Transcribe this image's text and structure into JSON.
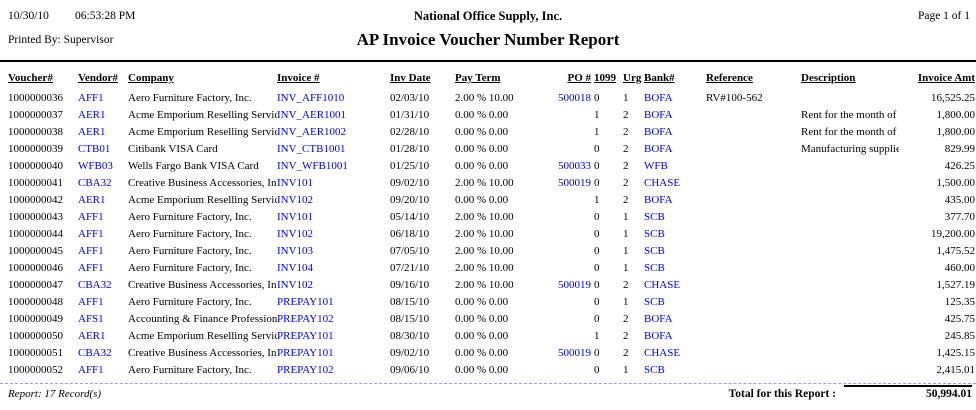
{
  "page_header": {
    "date": "10/30/10",
    "time": "06:53:28 PM",
    "company_name": "National Office Supply, Inc.",
    "page_indicator": "Page 1 of 1",
    "printed_by": "Printed By: Supervisor",
    "report_title": "AP Invoice Voucher Number Report"
  },
  "colors": {
    "link_blue": "#0000dd",
    "text_black": "#000000",
    "header_rule": "#000000",
    "footer_separator": "#9999ee"
  },
  "table": {
    "columns": [
      {
        "key": "voucher",
        "label": "Voucher#",
        "link": false
      },
      {
        "key": "vendor",
        "label": "Vendor#",
        "link": true
      },
      {
        "key": "company",
        "label": "Company",
        "link": false
      },
      {
        "key": "invoice",
        "label": "Invoice #",
        "link": true
      },
      {
        "key": "inv_date",
        "label": "Inv Date",
        "link": false
      },
      {
        "key": "pay_term",
        "label": "Pay Term",
        "link": false
      },
      {
        "key": "po",
        "label": "PO #",
        "link": true
      },
      {
        "key": "c1099",
        "label": "1099",
        "link": false
      },
      {
        "key": "urg",
        "label": "Urg",
        "link": false
      },
      {
        "key": "bank",
        "label": "Bank#",
        "link": true
      },
      {
        "key": "reference",
        "label": "Reference",
        "link": false
      },
      {
        "key": "description",
        "label": "Description",
        "link": false
      },
      {
        "key": "amount",
        "label": "Invoice Amt",
        "link": false
      }
    ],
    "rows": [
      {
        "voucher": "1000000036",
        "vendor": "AFF1",
        "company": "Aero Furniture Factory, Inc.",
        "invoice": "INV_AFF1010",
        "inv_date": "02/03/10",
        "pay_term": "2.00 % 10.00",
        "po": "500018",
        "c1099": "0",
        "urg": "1",
        "bank": "BOFA",
        "reference": "RV#100-562",
        "description": "",
        "amount": "16,525.25"
      },
      {
        "voucher": "1000000037",
        "vendor": "AER1",
        "company": "Acme Emporium Reselling Servic",
        "invoice": "INV_AER1001",
        "inv_date": "01/31/10",
        "pay_term": "0.00 % 0.00",
        "po": "",
        "c1099": "1",
        "urg": "2",
        "bank": "BOFA",
        "reference": "",
        "description": "Rent for the month of Ja",
        "amount": "1,800.00"
      },
      {
        "voucher": "1000000038",
        "vendor": "AER1",
        "company": "Acme Emporium Reselling Servic",
        "invoice": "INV_AER1002",
        "inv_date": "02/28/10",
        "pay_term": "0.00 % 0.00",
        "po": "",
        "c1099": "1",
        "urg": "2",
        "bank": "BOFA",
        "reference": "",
        "description": "Rent for the month of F",
        "amount": "1,800.00"
      },
      {
        "voucher": "1000000039",
        "vendor": "CTB01",
        "company": "Citibank VISA Card",
        "invoice": "INV_CTB1001",
        "inv_date": "01/28/10",
        "pay_term": "0.00 % 0.00",
        "po": "",
        "c1099": "0",
        "urg": "2",
        "bank": "BOFA",
        "reference": "",
        "description": "Manufacturing supplies",
        "amount": "829.99"
      },
      {
        "voucher": "1000000040",
        "vendor": "WFB03",
        "company": "Wells Fargo Bank VISA Card",
        "invoice": "INV_WFB1001",
        "inv_date": "01/25/10",
        "pay_term": "0.00 % 0.00",
        "po": "500033",
        "c1099": "0",
        "urg": "2",
        "bank": "WFB",
        "reference": "",
        "description": "",
        "amount": "426.25"
      },
      {
        "voucher": "1000000041",
        "vendor": "CBA32",
        "company": "Creative Business Accessories, In",
        "invoice": "INV101",
        "inv_date": "09/02/10",
        "pay_term": "2.00 % 10.00",
        "po": "500019",
        "c1099": "0",
        "urg": "2",
        "bank": "CHASE",
        "reference": "",
        "description": "",
        "amount": "1,500.00"
      },
      {
        "voucher": "1000000042",
        "vendor": "AER1",
        "company": "Acme Emporium Reselling Servic",
        "invoice": "INV102",
        "inv_date": "09/20/10",
        "pay_term": "0.00 % 0.00",
        "po": "",
        "c1099": "1",
        "urg": "2",
        "bank": "BOFA",
        "reference": "",
        "description": "",
        "amount": "435.00"
      },
      {
        "voucher": "1000000043",
        "vendor": "AFF1",
        "company": "Aero Furniture Factory, Inc.",
        "invoice": "INV101",
        "inv_date": "05/14/10",
        "pay_term": "2.00 % 10.00",
        "po": "",
        "c1099": "0",
        "urg": "1",
        "bank": "SCB",
        "reference": "",
        "description": "",
        "amount": "377.70"
      },
      {
        "voucher": "1000000044",
        "vendor": "AFF1",
        "company": "Aero Furniture Factory, Inc.",
        "invoice": "INV102",
        "inv_date": "06/18/10",
        "pay_term": "2.00 % 10.00",
        "po": "",
        "c1099": "0",
        "urg": "1",
        "bank": "SCB",
        "reference": "",
        "description": "",
        "amount": "19,200.00"
      },
      {
        "voucher": "1000000045",
        "vendor": "AFF1",
        "company": "Aero Furniture Factory, Inc.",
        "invoice": "INV103",
        "inv_date": "07/05/10",
        "pay_term": "2.00 % 10.00",
        "po": "",
        "c1099": "0",
        "urg": "1",
        "bank": "SCB",
        "reference": "",
        "description": "",
        "amount": "1,475.52"
      },
      {
        "voucher": "1000000046",
        "vendor": "AFF1",
        "company": "Aero Furniture Factory, Inc.",
        "invoice": "INV104",
        "inv_date": "07/21/10",
        "pay_term": "2.00 % 10.00",
        "po": "",
        "c1099": "0",
        "urg": "1",
        "bank": "SCB",
        "reference": "",
        "description": "",
        "amount": "460.00"
      },
      {
        "voucher": "1000000047",
        "vendor": "CBA32",
        "company": "Creative Business Accessories, In",
        "invoice": "INV102",
        "inv_date": "09/16/10",
        "pay_term": "2.00 % 10.00",
        "po": "500019",
        "c1099": "0",
        "urg": "2",
        "bank": "CHASE",
        "reference": "",
        "description": "",
        "amount": "1,527.19"
      },
      {
        "voucher": "1000000048",
        "vendor": "AFF1",
        "company": "Aero Furniture Factory, Inc.",
        "invoice": "PREPAY101",
        "inv_date": "08/15/10",
        "pay_term": "0.00 % 0.00",
        "po": "",
        "c1099": "0",
        "urg": "1",
        "bank": "SCB",
        "reference": "",
        "description": "",
        "amount": "125.35"
      },
      {
        "voucher": "1000000049",
        "vendor": "AFS1",
        "company": "Accounting & Finance Profession",
        "invoice": "PREPAY102",
        "inv_date": "08/15/10",
        "pay_term": "0.00 % 0.00",
        "po": "",
        "c1099": "0",
        "urg": "2",
        "bank": "BOFA",
        "reference": "",
        "description": "",
        "amount": "425.75"
      },
      {
        "voucher": "1000000050",
        "vendor": "AER1",
        "company": "Acme Emporium Reselling Servic",
        "invoice": "PREPAY101",
        "inv_date": "08/30/10",
        "pay_term": "0.00 % 0.00",
        "po": "",
        "c1099": "1",
        "urg": "2",
        "bank": "BOFA",
        "reference": "",
        "description": "",
        "amount": "245.85"
      },
      {
        "voucher": "1000000051",
        "vendor": "CBA32",
        "company": "Creative Business Accessories, In",
        "invoice": "PREPAY101",
        "inv_date": "09/02/10",
        "pay_term": "0.00 % 0.00",
        "po": "500019",
        "c1099": "0",
        "urg": "2",
        "bank": "CHASE",
        "reference": "",
        "description": "",
        "amount": "1,425.15"
      },
      {
        "voucher": "1000000052",
        "vendor": "AFF1",
        "company": "Aero Furniture Factory, Inc.",
        "invoice": "PREPAY102",
        "inv_date": "09/06/10",
        "pay_term": "0.00 % 0.00",
        "po": "",
        "c1099": "0",
        "urg": "1",
        "bank": "SCB",
        "reference": "",
        "description": "",
        "amount": "2,415.01"
      }
    ]
  },
  "footer": {
    "record_count": "Report: 17 Record(s)",
    "total_label": "Total for this Report :",
    "total_value": "50,994.01"
  }
}
